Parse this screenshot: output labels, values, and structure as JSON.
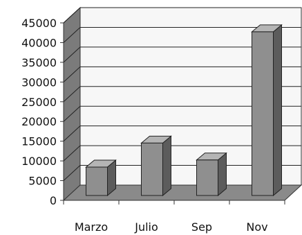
{
  "chart_data": {
    "type": "bar",
    "title": "",
    "xlabel": "",
    "ylabel": "",
    "categories": [
      "Marzo",
      "Julio",
      "Sep",
      "Nov"
    ],
    "values": [
      7200,
      13300,
      9000,
      41500
    ],
    "ylim": [
      0,
      45000
    ],
    "yticks": [
      0,
      5000,
      10000,
      15000,
      20000,
      25000,
      30000,
      35000,
      40000,
      45000
    ],
    "grid": true,
    "legend": "none",
    "three_d": true
  },
  "colors": {
    "bar_front": "#8f8f8f",
    "bar_side": "#5c5c5c",
    "bar_top": "#b5b5b5",
    "floor": "#8a8a8a",
    "left_wall": "#7b7b7b",
    "back_wall": "#f7f7f7",
    "gridline": "#222222"
  }
}
